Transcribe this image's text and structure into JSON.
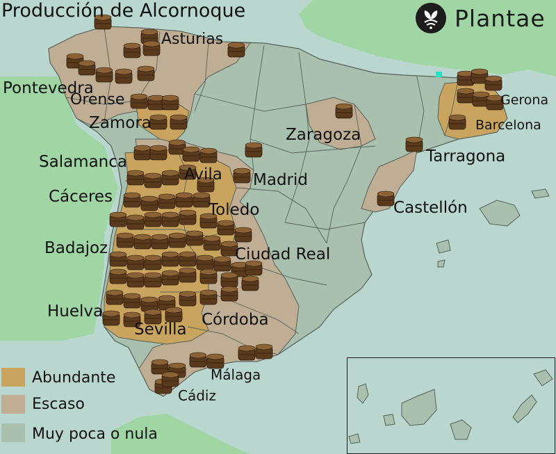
{
  "title": "Producción de Alcornoque",
  "logo": {
    "text": "Plantae",
    "icon": "plantae-leaf-wifi-icon"
  },
  "colors": {
    "sea": "#b9d6cf",
    "neighbor_land": "#9fd6a4",
    "abundante": "#c9a45e",
    "escaso": "#bfae93",
    "muy_poca": "#a9c0ae",
    "border": "#55605a"
  },
  "legend": [
    {
      "label": "Abundante",
      "color": "#c9a45e"
    },
    {
      "label": "Escaso",
      "color": "#bfae93"
    },
    {
      "label": "Muy poca o nula",
      "color": "#a9c0ae"
    }
  ],
  "provinces": {
    "asturias": "Asturias",
    "pontevedra": "Pontevedra",
    "orense": "Orense",
    "zamora": "Zamora",
    "salamanca": "Salamanca",
    "avila": "Avila",
    "madrid": "Madrid",
    "caceres": "Cáceres",
    "toledo": "Toledo",
    "badajoz": "Badajoz",
    "ciudad_real": "Ciudad Real",
    "huelva": "Huelva",
    "sevilla": "Sevilla",
    "cordoba": "Córdoba",
    "malaga": "Málaga",
    "cadiz": "Cádiz",
    "zaragoza": "Zaragoza",
    "tarragona": "Tarragona",
    "castellon": "Castellón",
    "gerona": "Gerona",
    "barcelona": "Barcelona"
  },
  "icon": "cork-stack-icon"
}
